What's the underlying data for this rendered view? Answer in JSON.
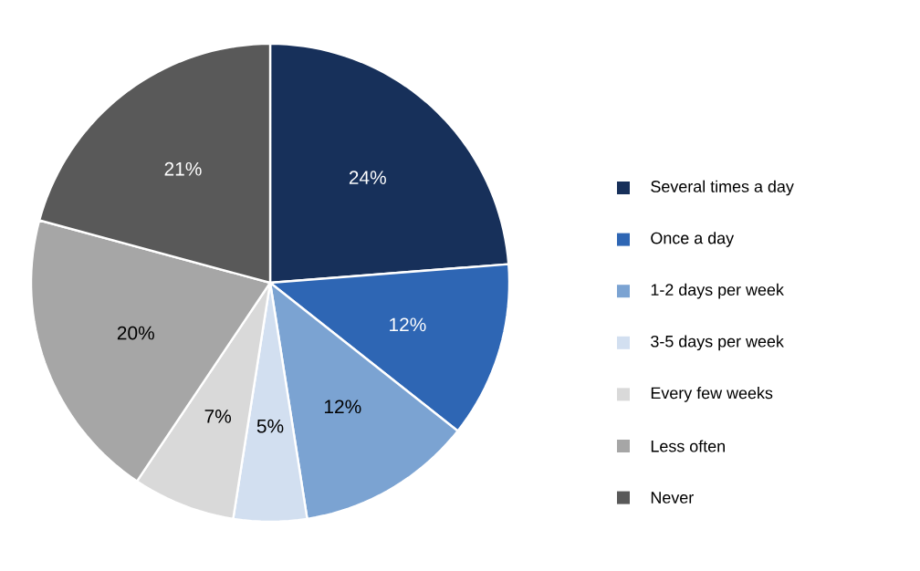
{
  "chart_data": {
    "type": "pie",
    "categories": [
      "Several times a day",
      "Once a day",
      "1-2 days per week",
      "3-5 days per week",
      "Every few weeks",
      "Less often",
      "Never"
    ],
    "values": [
      24,
      12,
      12,
      5,
      7,
      20,
      21
    ],
    "value_labels": [
      "24%",
      "12%",
      "12%",
      "5%",
      "7%",
      "20%",
      "21%"
    ],
    "colors": [
      "#17305a",
      "#2e66b4",
      "#7ba3d2",
      "#d2dff0",
      "#d9d9d9",
      "#a6a6a6",
      "#595959"
    ],
    "legend": "right"
  }
}
